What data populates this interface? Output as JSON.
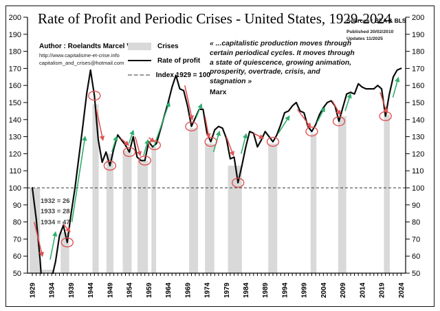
{
  "title": "Rate of Profit and Periodic Crises - United States, 1929-2024",
  "sources": {
    "line1": "Sources : BEA & BLS",
    "line2": "Published 20/02/2010",
    "line3": "Updates 11/2025"
  },
  "author": {
    "line1": "Author : Roelandts Marcel V2.0",
    "line2": "http://www.capitalisme-et-crise.info",
    "line3": "capitalism_and_crises@hotmail.com"
  },
  "legend": {
    "crises": "Crises",
    "rate": "Rate of profit",
    "index": "Index 1929 = 100"
  },
  "quote": {
    "text": "« ...capitalistic production moves through certain periodical cycles. It moves through a state of quiescence, growing animation, prosperity, overtrade, crisis, and stagnation »",
    "attribution": "Marx"
  },
  "annotation": {
    "line1": "1932 = 26",
    "line2": "1933 = 28",
    "line3": "1934 = 47"
  },
  "colors": {
    "line": "#0a0a0a",
    "band": "#d9d9d9",
    "dash": "#333333",
    "up_arrow": "#2fae6e",
    "down_arrow": "#e05252",
    "circle": "#e05252"
  },
  "chart_data": {
    "type": "line",
    "title": "Rate of Profit and Periodic Crises - United States, 1929-2024",
    "ylabel": "Index 1929 = 100",
    "years": {
      "start": 1929,
      "end": 2024
    },
    "ylim": [
      50,
      200
    ],
    "ytick_step": 10,
    "yticks": [
      50,
      60,
      70,
      80,
      90,
      100,
      110,
      120,
      130,
      140,
      150,
      160,
      170,
      180,
      190,
      200
    ],
    "xticks": [
      1929,
      1934,
      1939,
      1944,
      1949,
      1954,
      1959,
      1964,
      1969,
      1974,
      1979,
      1984,
      1989,
      1994,
      1999,
      2004,
      2009,
      2014,
      2019,
      2024
    ],
    "index_line": 100,
    "series": [
      {
        "name": "Rate of profit",
        "values": [
          100,
          82,
          58,
          26,
          28,
          47,
          57,
          72,
          78,
          68,
          85,
          100,
          118,
          136,
          155,
          169,
          154,
          128,
          115,
          121,
          113,
          123,
          131,
          128,
          125,
          121,
          130,
          118,
          116,
          116,
          127,
          124,
          126,
          134,
          142,
          150,
          159,
          166,
          158,
          157,
          148,
          136,
          141,
          146,
          146,
          132,
          127,
          134,
          136,
          135,
          129,
          117,
          118,
          103,
          113,
          124,
          133,
          132,
          124,
          128,
          133,
          130,
          127,
          131,
          137,
          144,
          145,
          148,
          150,
          145,
          144,
          136,
          133,
          137,
          143,
          147,
          150,
          151,
          148,
          139,
          147,
          155,
          156,
          155,
          161,
          159,
          158,
          158,
          158,
          160,
          158,
          142,
          155,
          165,
          169,
          170
        ]
      }
    ],
    "crisis_bands": [
      [
        1928.3,
        1931.0,
        100
      ],
      [
        1936.3,
        1938.5,
        74
      ],
      [
        1944.5,
        1946.1,
        149
      ],
      [
        1948.1,
        1949.9,
        120
      ],
      [
        1952.3,
        1954.6,
        122
      ],
      [
        1956.1,
        1958.8,
        116
      ],
      [
        1959.7,
        1960.9,
        124
      ],
      [
        1969.4,
        1971.7,
        135
      ],
      [
        1973.5,
        1975.9,
        126
      ],
      [
        1979.4,
        1983.0,
        113
      ],
      [
        1989.8,
        1992.1,
        126
      ],
      [
        2000.7,
        2002.2,
        132
      ],
      [
        2007.8,
        2009.9,
        142
      ],
      [
        2019.6,
        2021.1,
        143
      ]
    ],
    "crisis_stub": [
      1931.4,
      1934.6
    ],
    "crisis_circles": [
      [
        1938,
        68
      ],
      [
        1945,
        154
      ],
      [
        1949,
        113
      ],
      [
        1954,
        121
      ],
      [
        1958,
        116
      ],
      [
        1960.5,
        125
      ],
      [
        1970,
        136
      ],
      [
        1975,
        127
      ],
      [
        1982,
        103
      ],
      [
        1991,
        127
      ],
      [
        2001,
        133
      ],
      [
        2008,
        139
      ],
      [
        2020,
        142
      ]
    ],
    "recovery_arrows": [
      [
        1933.6,
        58,
        1935.0,
        74
      ],
      [
        1939.2,
        80,
        1942.6,
        130
      ],
      [
        1949.5,
        121,
        1950.7,
        130
      ],
      [
        1953.9,
        126,
        1955.0,
        133.5
      ],
      [
        1957.7,
        119,
        1958.8,
        128
      ],
      [
        1960.3,
        124,
        1964.3,
        150
      ],
      [
        1971.2,
        141,
        1972.6,
        149
      ],
      [
        1975.7,
        121,
        1977.2,
        133
      ],
      [
        1982.8,
        120,
        1984.1,
        131.5
      ],
      [
        1992.4,
        132,
        1995.2,
        142
      ],
      [
        2002.3,
        138,
        2004.3,
        147
      ],
      [
        2009.6,
        145,
        2011.0,
        155
      ],
      [
        2021.9,
        153,
        2023.3,
        164.5
      ]
    ],
    "decline_arrows": [
      [
        1929.5,
        80,
        1931.6,
        60
      ],
      [
        1936.9,
        79,
        1938.7,
        74.3
      ],
      [
        1945.5,
        146,
        1947.2,
        128
      ],
      [
        1951.8,
        129,
        1953.8,
        125
      ],
      [
        1955.5,
        130,
        1956.8,
        119
      ],
      [
        1959.0,
        129.5,
        1960.4,
        127
      ],
      [
        1968.3,
        160,
        1970.2,
        140
      ],
      [
        1973.5,
        142,
        1974.5,
        129.5
      ],
      [
        1979.0,
        130,
        1980.8,
        119
      ],
      [
        1986.0,
        132,
        1988.5,
        129
      ],
      [
        1997.3,
        146,
        2000.7,
        135.5
      ],
      [
        2006.3,
        151,
        2008.3,
        143
      ],
      [
        2018.6,
        156,
        2020.4,
        144
      ]
    ]
  }
}
